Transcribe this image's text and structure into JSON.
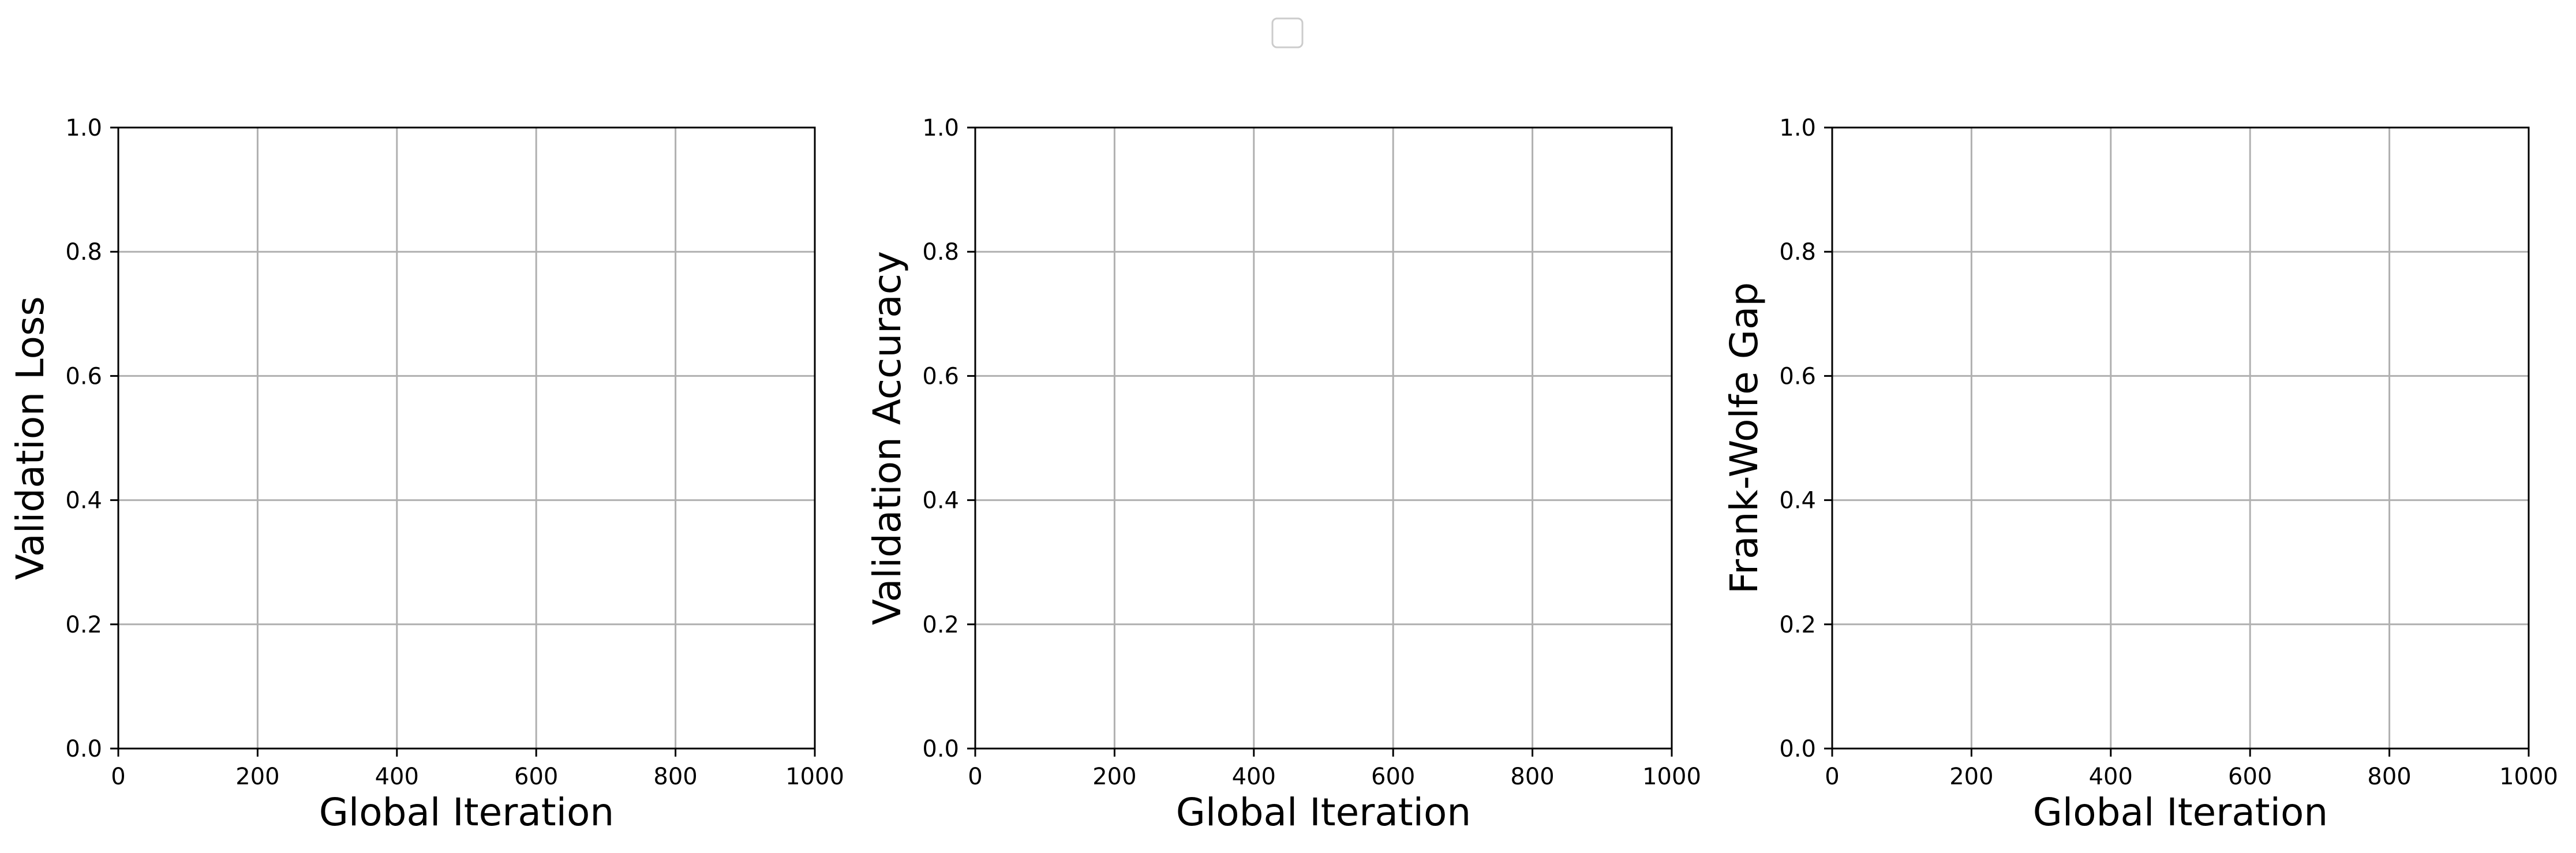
{
  "chart_data": [
    {
      "type": "line",
      "xlabel": "Global Iteration",
      "ylabel": "Validation Loss",
      "xlim": [
        0,
        1000
      ],
      "ylim": [
        0,
        1
      ],
      "x_ticks": [
        "0",
        "200",
        "400",
        "600",
        "800",
        "1000"
      ],
      "y_ticks": [
        "0.0",
        "0.2",
        "0.4",
        "0.6",
        "0.8",
        "1.0"
      ],
      "grid": true,
      "series": []
    },
    {
      "type": "line",
      "xlabel": "Global Iteration",
      "ylabel": "Validation Accuracy",
      "xlim": [
        0,
        1000
      ],
      "ylim": [
        0,
        1
      ],
      "x_ticks": [
        "0",
        "200",
        "400",
        "600",
        "800",
        "1000"
      ],
      "y_ticks": [
        "0.0",
        "0.2",
        "0.4",
        "0.6",
        "0.8",
        "1.0"
      ],
      "grid": true,
      "series": []
    },
    {
      "type": "line",
      "xlabel": "Global Iteration",
      "ylabel": "Frank-Wolfe Gap",
      "xlim": [
        0,
        1000
      ],
      "ylim": [
        0,
        1
      ],
      "x_ticks": [
        "0",
        "200",
        "400",
        "600",
        "800",
        "1000"
      ],
      "y_ticks": [
        "0.0",
        "0.2",
        "0.4",
        "0.6",
        "0.8",
        "1.0"
      ],
      "grid": true,
      "series": []
    }
  ],
  "legend": {
    "placement": "top-center",
    "entries": []
  }
}
